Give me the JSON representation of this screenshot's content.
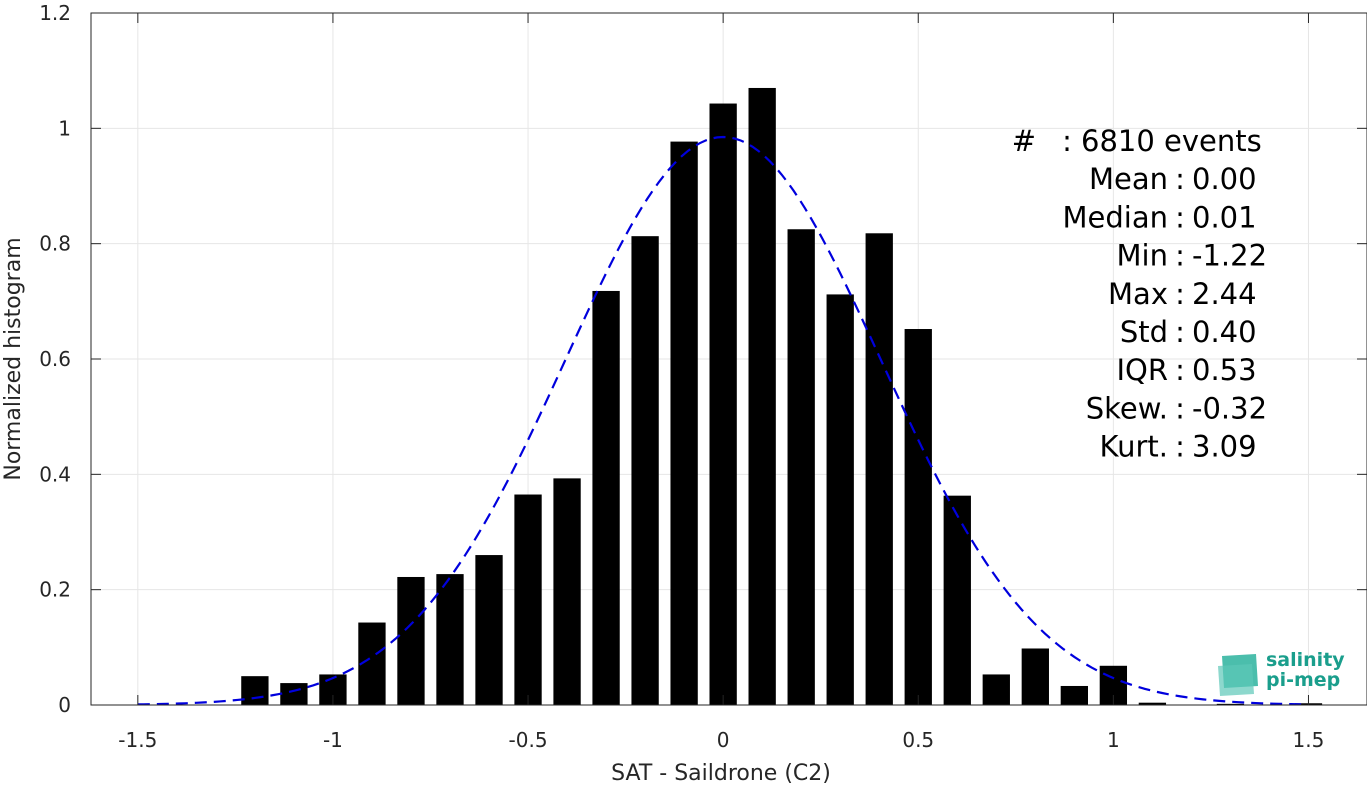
{
  "chart_data": {
    "type": "bar",
    "xlabel": "SAT - Saildrone (C2)",
    "ylabel": "Normalized histogram",
    "xlim": [
      -1.62,
      1.65
    ],
    "ylim": [
      0,
      1.2
    ],
    "xticks": [
      -1.5,
      -1,
      -0.5,
      0,
      0.5,
      1,
      1.5
    ],
    "xtick_labels": [
      "-1.5",
      "-1",
      "-0.5",
      "0",
      "0.5",
      "1",
      "1.5"
    ],
    "yticks": [
      0,
      0.2,
      0.4,
      0.6,
      0.8,
      1,
      1.2
    ],
    "ytick_labels": [
      "0",
      "0.2",
      "0.4",
      "0.6",
      "0.8",
      "1",
      "1.2"
    ],
    "grid": true,
    "bar_width": 0.07,
    "bars": {
      "x": [
        -1.2,
        -1.1,
        -1.0,
        -0.9,
        -0.8,
        -0.7,
        -0.6,
        -0.5,
        -0.4,
        -0.3,
        -0.2,
        -0.1,
        0.0,
        0.1,
        0.2,
        0.3,
        0.4,
        0.5,
        0.6,
        0.7,
        0.8,
        0.9,
        1.0,
        1.1,
        1.2,
        1.3,
        1.4,
        1.5
      ],
      "values": [
        0.05,
        0.038,
        0.053,
        0.143,
        0.222,
        0.227,
        0.26,
        0.365,
        0.393,
        0.718,
        0.813,
        0.977,
        1.043,
        1.07,
        0.825,
        0.712,
        0.818,
        0.652,
        0.363,
        0.053,
        0.098,
        0.033,
        0.068,
        0.004,
        0.0,
        0.002,
        0.0,
        0.003
      ],
      "color": "#000000"
    },
    "fit": {
      "type": "gaussian",
      "mean": 0.0,
      "std": 0.405,
      "peak": 0.985,
      "x_range": [
        -1.5,
        1.5
      ],
      "color": "#0000dd",
      "style": "dashed"
    },
    "stats": [
      {
        "key": "#",
        "sep": ":",
        "value": "6810 events"
      },
      {
        "key": "Mean",
        "sep": ":",
        "value": "0.00"
      },
      {
        "key": "Median",
        "sep": ":",
        "value": "0.01"
      },
      {
        "key": "Min",
        "sep": ":",
        "value": "-1.22"
      },
      {
        "key": "Max",
        "sep": ":",
        "value": "2.44"
      },
      {
        "key": "Std",
        "sep": ":",
        "value": "0.40"
      },
      {
        "key": "IQR",
        "sep": ":",
        "value": "0.53"
      },
      {
        "key": "Skew.",
        "sep": ":",
        "value": "-0.32"
      },
      {
        "key": "Kurt.",
        "sep": ":",
        "value": "3.09"
      }
    ]
  },
  "logo": {
    "line1": "salinity",
    "line2": "pi-mep",
    "color": "#1a9e8c"
  }
}
